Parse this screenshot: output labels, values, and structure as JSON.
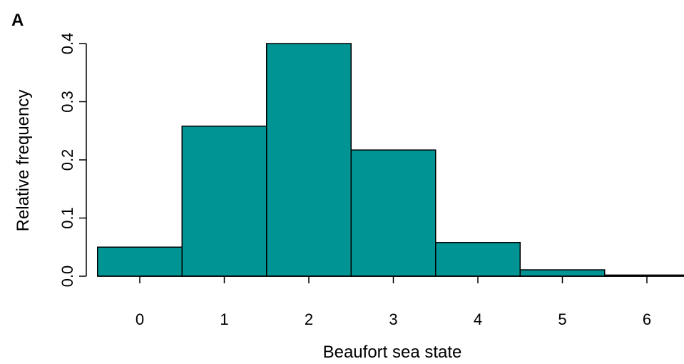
{
  "panel_label": "A",
  "colors": {
    "bar_fill": "#009494",
    "bar_stroke": "#000000",
    "axis": "#000000"
  },
  "chart_data": {
    "type": "bar",
    "title": "",
    "xlabel": "Beaufort sea state",
    "ylabel": "Relative frequency",
    "categories": [
      "0",
      "1",
      "2",
      "3",
      "4",
      "5",
      "6"
    ],
    "values": [
      0.05,
      0.258,
      0.4,
      0.217,
      0.058,
      0.011,
      0.002
    ],
    "ylim": [
      0,
      0.4
    ],
    "yticks": [
      "0.0",
      "0.1",
      "0.2",
      "0.3",
      "0.4"
    ],
    "grid": false,
    "legend": "none"
  }
}
